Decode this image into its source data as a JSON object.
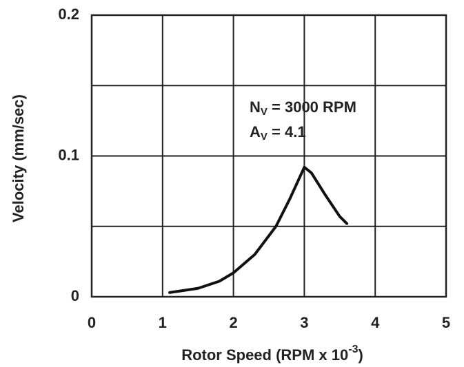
{
  "chart_data": {
    "type": "line",
    "x_label": {
      "text": "Rotor Speed (RPM x 10",
      "superscript": "-3",
      "suffix": ")"
    },
    "y_label": "Velocity (mm/sec)",
    "annotations": [
      {
        "symbol": "N",
        "subscript": "V",
        "text": " = 3000 RPM"
      },
      {
        "symbol": "A",
        "subscript": "V",
        "text": " = 4.1"
      }
    ],
    "x": [
      1.1,
      1.5,
      1.8,
      2.0,
      2.3,
      2.6,
      2.8,
      3.0,
      3.1,
      3.3,
      3.5,
      3.6
    ],
    "series": [
      {
        "color": "#111111",
        "values": [
          0.003,
          0.006,
          0.011,
          0.017,
          0.03,
          0.05,
          0.07,
          0.092,
          0.088,
          0.072,
          0.057,
          0.052
        ]
      }
    ],
    "xlim": [
      0,
      5
    ],
    "xticks": [
      0,
      1,
      2,
      3,
      4,
      5
    ],
    "ylim": [
      0,
      0.2
    ],
    "yticks": [
      0,
      0.1,
      0.2
    ],
    "y_minor_grid": [
      0.05,
      0.15
    ],
    "grid": true
  }
}
